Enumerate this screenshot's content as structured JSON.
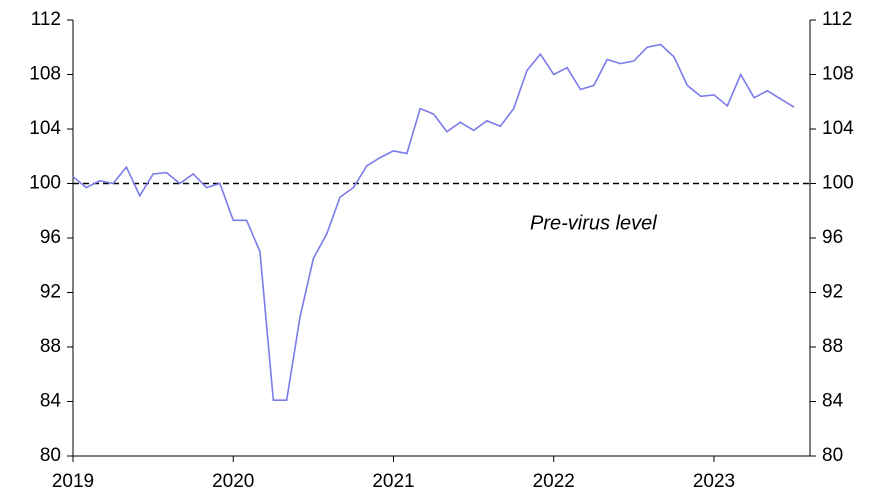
{
  "chart_data": {
    "type": "line",
    "categories": [
      "2019",
      null,
      null,
      null,
      null,
      null,
      null,
      null,
      null,
      null,
      null,
      null,
      "2020",
      null,
      null,
      null,
      null,
      null,
      null,
      null,
      null,
      null,
      null,
      null,
      "2021",
      null,
      null,
      null,
      null,
      null,
      null,
      null,
      null,
      null,
      null,
      null,
      "2022",
      null,
      null,
      null,
      null,
      null,
      null,
      null,
      null,
      null,
      null,
      null,
      "2023",
      null,
      null,
      null,
      null,
      null,
      null
    ],
    "series": [
      {
        "color": "#7b7bea",
        "values": [
          100.5,
          99.7,
          100.2,
          100.0,
          101.2,
          99.1,
          100.7,
          100.8,
          100.0,
          100.7,
          99.7,
          100.0,
          97.3,
          97.3,
          95.0,
          84.1,
          84.1,
          90.2,
          94.5,
          96.3,
          99.0,
          99.7,
          101.3,
          101.9,
          102.4,
          102.2,
          105.5,
          105.1,
          103.8,
          104.5,
          103.9,
          104.6,
          104.2,
          105.5,
          108.3,
          109.5,
          108.0,
          108.5,
          106.9,
          107.2,
          109.1,
          108.8,
          109.0,
          110.0,
          110.2,
          109.3,
          107.2,
          106.4,
          106.5,
          105.7,
          108.0,
          106.3,
          106.8,
          106.2,
          105.6
        ]
      }
    ],
    "ylim": [
      80,
      112
    ],
    "yticks": [
      80,
      84,
      88,
      92,
      96,
      100,
      104,
      108,
      112
    ],
    "y2lim": [
      80,
      112
    ],
    "y2ticks": [
      80,
      84,
      88,
      92,
      96,
      100,
      104,
      108,
      112
    ],
    "reference_line": {
      "value": 100,
      "label": "Pre-virus level"
    }
  }
}
